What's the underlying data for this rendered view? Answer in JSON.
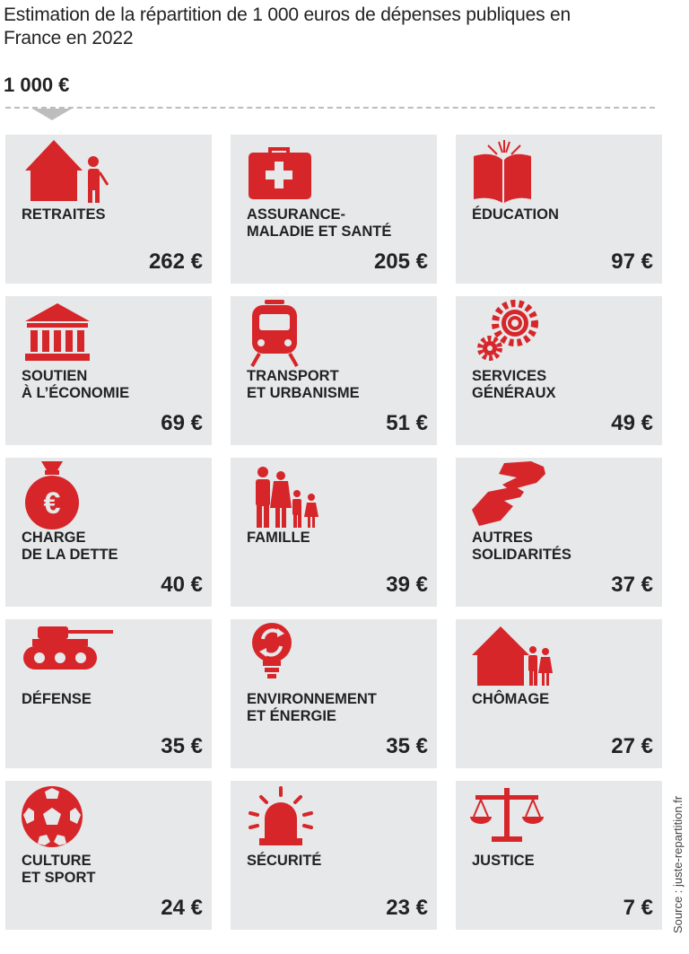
{
  "header": {
    "title": "Estimation de la répartition de 1 000 euros de dépenses publiques en France en 2022",
    "total": "1 000 €"
  },
  "accent_color": "#d7262a",
  "card_background": "#e6e8e9",
  "items": [
    {
      "label": "RETRAITES",
      "amount": "262 €",
      "icon": "house-person-icon"
    },
    {
      "label": "ASSURANCE-\nMALADIE ET SANTÉ",
      "amount": "205 €",
      "icon": "first-aid-kit-icon"
    },
    {
      "label": "ÉDUCATION",
      "amount": "97 €",
      "icon": "open-book-icon"
    },
    {
      "label": "SOUTIEN\nÀ L’ÉCONOMIE",
      "amount": "69 €",
      "icon": "bank-building-icon"
    },
    {
      "label": "TRANSPORT\nET URBANISME",
      "amount": "51 €",
      "icon": "train-icon"
    },
    {
      "label": "SERVICES\nGÉNÉRAUX",
      "amount": "49 €",
      "icon": "gears-icon"
    },
    {
      "label": "CHARGE\nDE LA DETTE",
      "amount": "40 €",
      "icon": "money-bag-icon"
    },
    {
      "label": "FAMILLE",
      "amount": "39 €",
      "icon": "family-icon"
    },
    {
      "label": "AUTRES\nSOLIDARITÉS",
      "amount": "37 €",
      "icon": "helping-hands-icon"
    },
    {
      "label": "DÉFENSE",
      "amount": "35 €",
      "icon": "tank-icon"
    },
    {
      "label": "ENVIRONNEMENT\nET ÉNERGIE",
      "amount": "35 €",
      "icon": "eco-bulb-icon"
    },
    {
      "label": "CHÔMAGE",
      "amount": "27 €",
      "icon": "house-family-icon"
    },
    {
      "label": "CULTURE\nET SPORT",
      "amount": "24 €",
      "icon": "soccer-ball-icon"
    },
    {
      "label": "SÉCURITÉ",
      "amount": "23 €",
      "icon": "siren-icon"
    },
    {
      "label": "JUSTICE",
      "amount": "7 €",
      "icon": "scales-icon"
    }
  ],
  "source": "Source : juste-repartition.fr"
}
